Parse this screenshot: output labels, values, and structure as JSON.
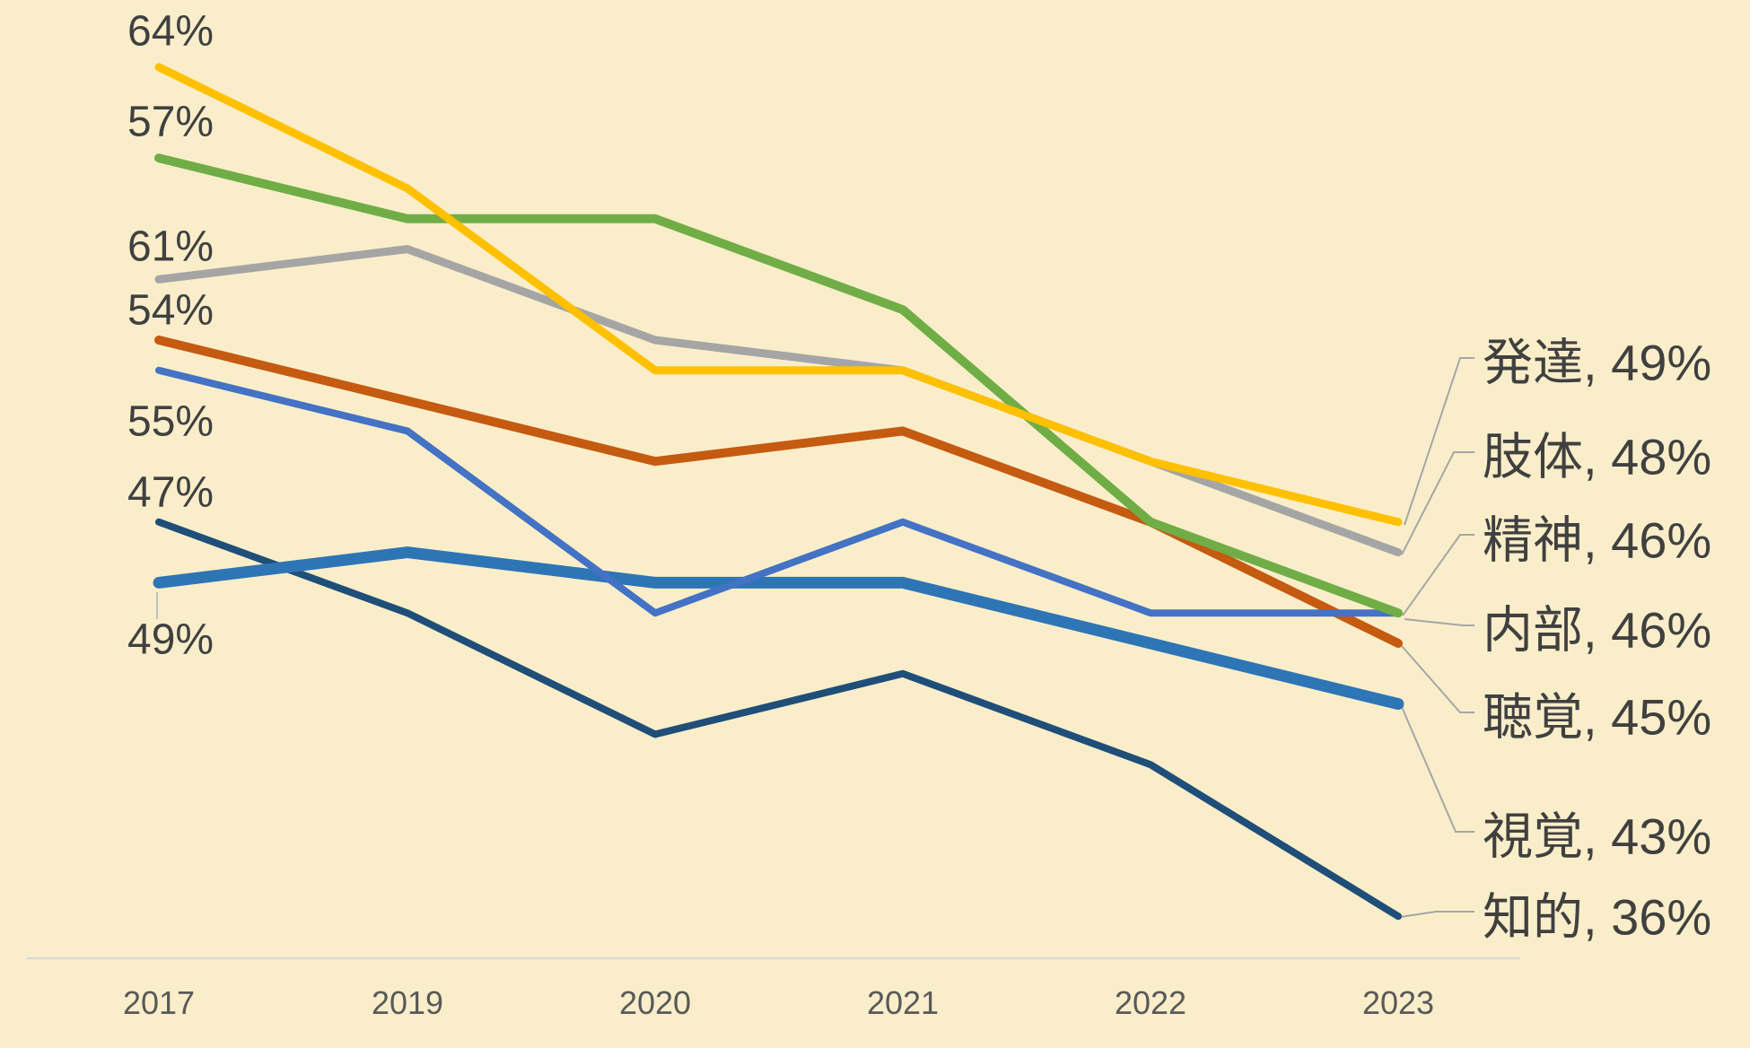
{
  "chart_data": {
    "type": "line",
    "title": "",
    "categories": [
      "2017",
      "2019",
      "2020",
      "2021",
      "2022",
      "2023"
    ],
    "series": [
      {
        "name": "発達",
        "values": [
          64,
          60,
          54,
          54,
          51,
          49
        ],
        "color": "#FFC000"
      },
      {
        "name": "肢体",
        "values": [
          57,
          58,
          55,
          54,
          51,
          48
        ],
        "color": "#A5A5A5"
      },
      {
        "name": "精神",
        "values": [
          61,
          59,
          59,
          56,
          49,
          46
        ],
        "color": "#70AD47"
      },
      {
        "name": "内部",
        "values": [
          54,
          52,
          46,
          49,
          46,
          46
        ],
        "color": "#4472C4"
      },
      {
        "name": "聴覚",
        "values": [
          55,
          53,
          51,
          52,
          49,
          45
        ],
        "color": "#C55A11"
      },
      {
        "name": "視覚",
        "values": [
          47,
          48,
          47,
          47,
          45,
          43
        ],
        "color": "#2E75B6"
      },
      {
        "name": "知的",
        "values": [
          49,
          46,
          42,
          44,
          41,
          36
        ],
        "color": "#1F4E79"
      }
    ],
    "start_labels": [
      "64%",
      "61%",
      "57%",
      "55%",
      "54%",
      "49%",
      "47%"
    ],
    "end_labels": [
      "発達, 49%",
      "肢体, 48%",
      "精神, 46%",
      "内部, 46%",
      "聴覚, 45%",
      "視覚, 43%",
      "知的, 36%"
    ],
    "legend_position": "right",
    "grid": false,
    "ylim": [
      34,
      66
    ]
  },
  "colors": {
    "background": "#FAEECA",
    "axis_line": "#D9D9D9",
    "axis_text": "#595959",
    "data_label_text": "#404040",
    "leader_line": "#A6A6A6",
    "start_tick": "#BFBFBF"
  }
}
